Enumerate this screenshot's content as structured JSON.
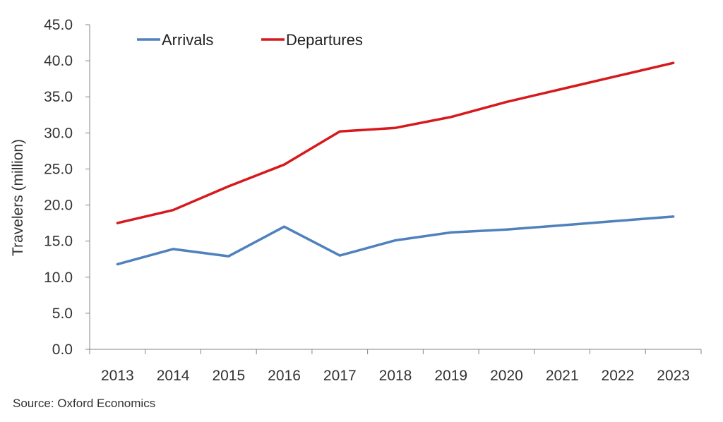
{
  "chart_data": {
    "type": "line",
    "title": "",
    "xlabel": "",
    "ylabel": "Travelers (million)",
    "categories": [
      "2013",
      "2014",
      "2015",
      "2016",
      "2017",
      "2018",
      "2019",
      "2020",
      "2021",
      "2022",
      "2023"
    ],
    "ylim": [
      0,
      45
    ],
    "yticks": [
      "0.0",
      "5.0",
      "10.0",
      "15.0",
      "20.0",
      "25.0",
      "30.0",
      "35.0",
      "40.0",
      "45.0"
    ],
    "grid": false,
    "legend_position": "top-left",
    "series": [
      {
        "name": "Arrivals",
        "color": "#4F81BD",
        "values": [
          11.8,
          13.9,
          12.9,
          17.0,
          13.0,
          15.1,
          16.2,
          16.6,
          17.2,
          17.8,
          18.4
        ]
      },
      {
        "name": "Departures",
        "color": "#D7191C",
        "values": [
          17.5,
          19.3,
          22.6,
          25.6,
          30.2,
          30.7,
          32.2,
          34.3,
          36.1,
          37.9,
          39.7
        ]
      }
    ]
  },
  "source": "Source:  Oxford Economics"
}
